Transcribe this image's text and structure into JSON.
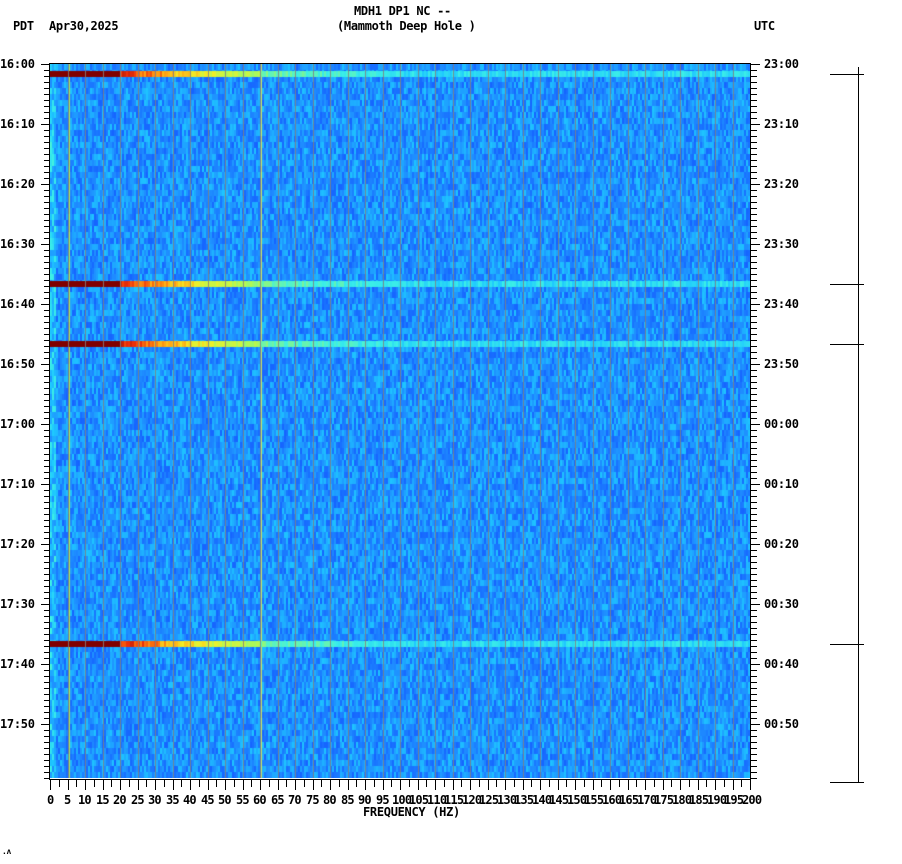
{
  "header": {
    "left_timezone": "PDT",
    "date": "Apr30,2025",
    "title_line1": "MDH1 DP1 NC --",
    "title_line2": "(Mammoth Deep Hole )",
    "right_timezone": "UTC"
  },
  "footer_mark": ".ʌ",
  "colors": {
    "background_blue": "#1e7dff",
    "light_blue": "#20a8ff",
    "cyan": "#30e8ff",
    "yellow": "#e8f030",
    "orange": "#ff9010",
    "red": "#e01010",
    "dark_red": "#800000",
    "gridline": "#808080"
  },
  "chart_data": {
    "type": "heatmap",
    "title": "MDH1 DP1 NC -- (Mammoth Deep Hole )",
    "subtitle": "Apr30,2025",
    "xlabel": "FREQUENCY (HZ)",
    "ylabel_left": "PDT",
    "ylabel_right": "UTC",
    "xlim": [
      0,
      200
    ],
    "x_ticks": [
      0,
      5,
      10,
      15,
      20,
      25,
      30,
      35,
      40,
      45,
      50,
      55,
      60,
      65,
      70,
      75,
      80,
      85,
      90,
      95,
      100,
      105,
      110,
      115,
      120,
      125,
      130,
      135,
      140,
      145,
      150,
      155,
      160,
      165,
      170,
      175,
      180,
      185,
      190,
      195,
      200
    ],
    "y_ticks_left": [
      "16:00",
      "16:10",
      "16:20",
      "16:30",
      "16:40",
      "16:50",
      "17:00",
      "17:10",
      "17:20",
      "17:30",
      "17:40",
      "17:50"
    ],
    "y_ticks_right": [
      "23:00",
      "23:10",
      "23:20",
      "23:30",
      "23:40",
      "23:50",
      "00:00",
      "00:10",
      "00:20",
      "00:30",
      "00:40",
      "00:50"
    ],
    "time_range_pdt": [
      "16:00",
      "18:00"
    ],
    "grid": true,
    "background_level": "low (blue)",
    "persistent_frequency_lines_hz": [
      5,
      60
    ],
    "broadband_events": [
      {
        "time_pdt": "16:01",
        "strongest_below_hz": 20
      },
      {
        "time_pdt": "16:36",
        "strongest_below_hz": 20
      },
      {
        "time_pdt": "16:46",
        "strongest_below_hz": 20
      },
      {
        "time_pdt": "17:36",
        "strongest_below_hz": 20
      },
      {
        "time_pdt": "17:59",
        "strongest_below_hz": 20
      }
    ],
    "event_marker_times_pdt": [
      "16:01",
      "16:36",
      "16:46",
      "17:36",
      "17:59"
    ]
  },
  "axes": {
    "left_labels": [
      "16:00",
      "16:10",
      "16:20",
      "16:30",
      "16:40",
      "16:50",
      "17:00",
      "17:10",
      "17:20",
      "17:30",
      "17:40",
      "17:50"
    ],
    "right_labels": [
      "23:00",
      "23:10",
      "23:20",
      "23:30",
      "23:40",
      "23:50",
      "00:00",
      "00:10",
      "00:20",
      "00:30",
      "00:40",
      "00:50"
    ],
    "x_labels": [
      "0",
      "5",
      "10",
      "15",
      "20",
      "25",
      "30",
      "35",
      "40",
      "45",
      "50",
      "55",
      "60",
      "65",
      "70",
      "75",
      "80",
      "85",
      "90",
      "95",
      "100",
      "105",
      "110",
      "115",
      "120",
      "125",
      "130",
      "135",
      "140",
      "145",
      "150",
      "155",
      "160",
      "165",
      "170",
      "175",
      "180",
      "185",
      "190",
      "195",
      "200"
    ],
    "x_title": "FREQUENCY (HZ)"
  }
}
